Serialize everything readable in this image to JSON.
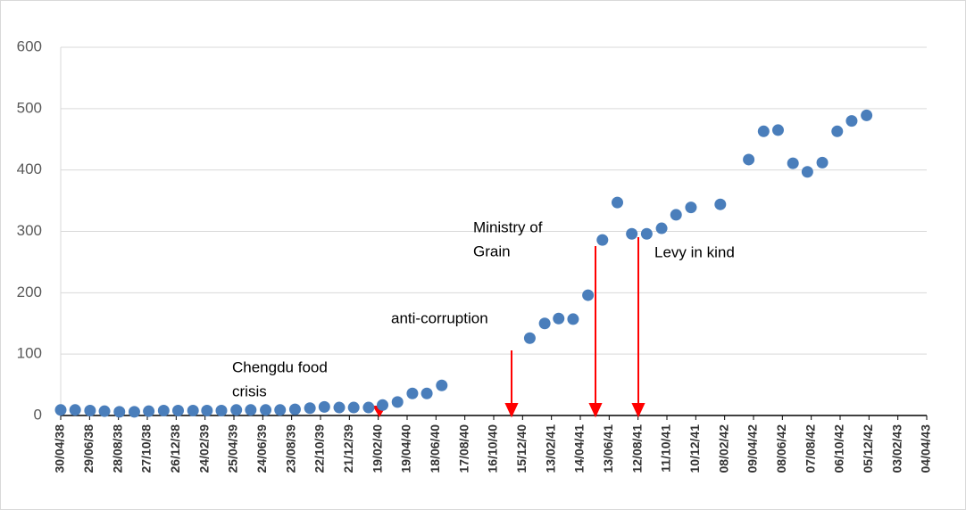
{
  "chart_data": {
    "type": "scatter",
    "x": [
      "30/04/38",
      "30/05/38",
      "30/06/38",
      "30/07/38",
      "30/08/38",
      "30/09/38",
      "30/10/38",
      "30/11/38",
      "30/12/38",
      "30/01/39",
      "28/02/39",
      "30/03/39",
      "30/04/39",
      "30/05/39",
      "30/06/39",
      "30/07/39",
      "30/08/39",
      "30/09/39",
      "30/10/39",
      "30/11/39",
      "30/12/39",
      "30/01/40",
      "28/02/40",
      "30/03/40",
      "30/04/40",
      "30/05/40",
      "30/06/40",
      "30/12/40",
      "30/01/41",
      "28/02/41",
      "30/03/41",
      "30/04/41",
      "30/05/41",
      "30/06/41",
      "30/07/41",
      "30/08/41",
      "30/09/41",
      "30/10/41",
      "30/11/41",
      "30/01/42",
      "30/03/42",
      "30/04/42",
      "30/05/42",
      "30/06/42",
      "30/07/42",
      "30/08/42",
      "30/09/42",
      "30/10/42",
      "30/11/42"
    ],
    "values": [
      9,
      9,
      8,
      7,
      6,
      6,
      7,
      8,
      8,
      8,
      8,
      8,
      9,
      9,
      9,
      9,
      10,
      12,
      14,
      13,
      13,
      13,
      17,
      22,
      36,
      36,
      49,
      126,
      150,
      158,
      157,
      196,
      286,
      347,
      296,
      296,
      305,
      327,
      339,
      344,
      417,
      463,
      465,
      411,
      397,
      412,
      463,
      480,
      489
    ],
    "color": "#4a7ebb",
    "xlim": [
      "30/04/38",
      "04/04/43"
    ],
    "xticks": [
      "30/04/38",
      "29/06/38",
      "28/08/38",
      "27/10/38",
      "26/12/38",
      "24/02/39",
      "25/04/39",
      "24/06/39",
      "23/08/39",
      "22/10/39",
      "21/12/39",
      "19/02/40",
      "19/04/40",
      "18/06/40",
      "17/08/40",
      "16/10/40",
      "15/12/40",
      "13/02/41",
      "14/04/41",
      "13/06/41",
      "12/08/41",
      "11/10/41",
      "10/12/41",
      "08/02/42",
      "09/04/42",
      "08/06/42",
      "07/08/42",
      "06/10/42",
      "05/12/42",
      "03/02/43",
      "04/04/43"
    ],
    "ylim": [
      0,
      600
    ],
    "yticks": [
      0,
      100,
      200,
      300,
      400,
      500,
      600
    ],
    "grid": true,
    "annotations": [
      {
        "lines": [
          "Chengdu food",
          "crisis"
        ]
      },
      {
        "lines": [
          "anti-corruption"
        ]
      },
      {
        "lines": [
          "Ministry of",
          "Grain"
        ]
      },
      {
        "lines": [
          "Levy in kind"
        ]
      }
    ]
  }
}
